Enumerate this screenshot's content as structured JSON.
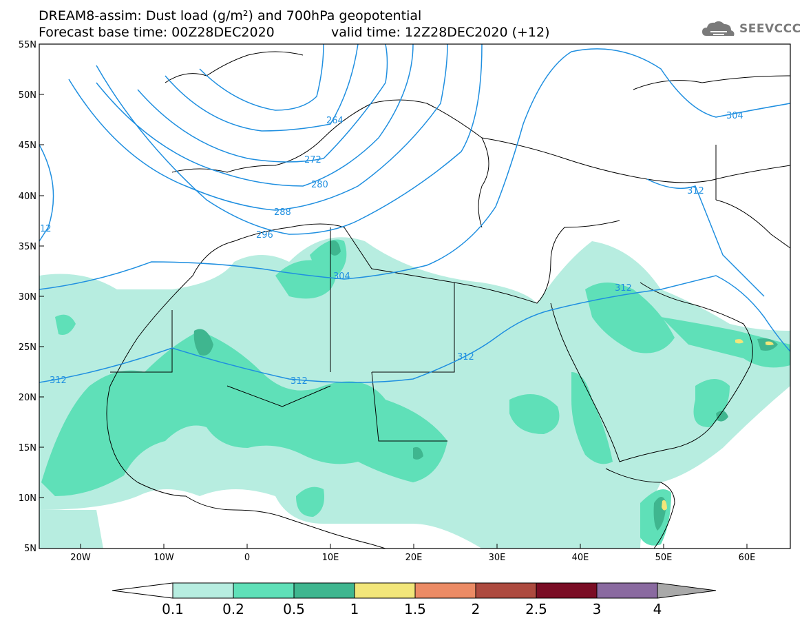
{
  "header": {
    "title": "DREAM8-assim: Dust load (g/m²) and 700hPa geopotential",
    "base_time": "Forecast base time: 00Z28DEC2020",
    "valid_time": "valid time: 12Z28DEC2020 (+12)"
  },
  "logo": {
    "name": "cloud-logo-icon",
    "text": "SEEVCCC"
  },
  "map": {
    "lat_labels": [
      "55N",
      "50N",
      "45N",
      "40N",
      "35N",
      "30N",
      "25N",
      "20N",
      "15N",
      "10N",
      "5N"
    ],
    "lon_labels": [
      "20W",
      "10W",
      "0",
      "10E",
      "20E",
      "30E",
      "40E",
      "50E",
      "60E"
    ],
    "contour_labels": [
      "264",
      "272",
      "280",
      "288",
      "296",
      "304",
      "312",
      "312",
      "312",
      "312",
      "312",
      "304",
      "12"
    ],
    "colors": {
      "contour": "#1f8fe0",
      "border": "#000000"
    }
  },
  "colorbar": {
    "labels": [
      "0.1",
      "0.2",
      "0.5",
      "1",
      "1.5",
      "2",
      "2.5",
      "3",
      "4"
    ],
    "colors": [
      "#ffffff",
      "#b7ede0",
      "#5fe0b8",
      "#3fb68f",
      "#f2e67a",
      "#ec8b65",
      "#ad4a3f",
      "#7a0d25",
      "#8a6aa0",
      "#a9a9a9"
    ]
  }
}
